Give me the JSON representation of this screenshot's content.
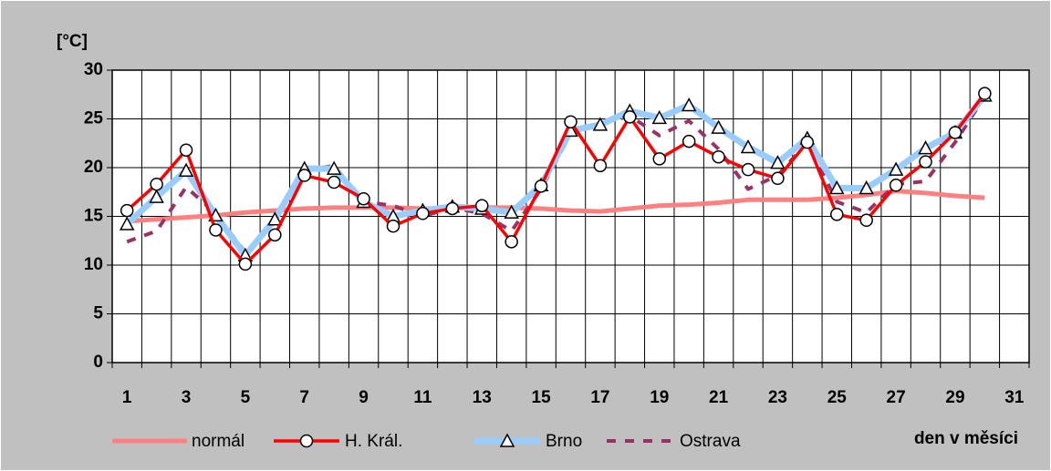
{
  "chart_data": {
    "type": "line",
    "ylabel": "[°C]",
    "xlabel": "den v měsíci",
    "categories": [
      1,
      null,
      3,
      null,
      5,
      null,
      7,
      null,
      9,
      null,
      11,
      null,
      13,
      null,
      15,
      null,
      17,
      null,
      19,
      null,
      21,
      null,
      23,
      null,
      25,
      null,
      27,
      null,
      29,
      null,
      31
    ],
    "ylim": [
      0,
      30
    ],
    "yticks": [
      0,
      5,
      10,
      15,
      20,
      25,
      30
    ],
    "grid": true,
    "legend": "bottom",
    "series": [
      {
        "name": "normál",
        "color": "#ff8080",
        "marker": "none",
        "dash": false,
        "values": [
          14.5,
          14.7,
          14.9,
          15.1,
          15.4,
          15.6,
          15.8,
          15.9,
          15.9,
          15.9,
          15.8,
          15.8,
          15.9,
          15.9,
          15.8,
          15.6,
          15.5,
          15.8,
          16.1,
          16.2,
          16.4,
          16.7,
          16.7,
          16.7,
          16.9,
          17.2,
          17.6,
          17.4,
          17.1,
          16.9,
          null
        ]
      },
      {
        "name": "H. Král.",
        "color": "#ff0000",
        "marker": "circle",
        "dash": false,
        "values": [
          15.6,
          18.3,
          21.8,
          13.6,
          10.1,
          13.1,
          19.2,
          18.5,
          16.8,
          14.0,
          15.3,
          15.8,
          16.1,
          12.4,
          18.1,
          24.7,
          20.2,
          25.2,
          20.9,
          22.7,
          21.1,
          19.8,
          18.9,
          22.6,
          15.2,
          14.6,
          18.2,
          20.6,
          23.6,
          27.6,
          null
        ]
      },
      {
        "name": "Brno",
        "color": "#99ccff",
        "marker": "triangle",
        "dash": false,
        "values": [
          14.2,
          17.0,
          19.7,
          15.1,
          11.0,
          14.7,
          19.9,
          19.9,
          16.5,
          15.0,
          15.6,
          16.0,
          15.8,
          15.4,
          18.2,
          23.8,
          24.4,
          25.8,
          25.1,
          26.4,
          24.1,
          22.1,
          20.5,
          23.0,
          17.9,
          17.9,
          19.8,
          22.0,
          23.6,
          27.4,
          null
        ]
      },
      {
        "name": "Ostrava",
        "color": "#993366",
        "marker": "none",
        "dash": true,
        "values": [
          12.4,
          13.5,
          18.0,
          15.3,
          11.3,
          14.5,
          19.7,
          20.2,
          16.5,
          16.1,
          15.0,
          15.9,
          15.3,
          13.5,
          17.8,
          23.5,
          24.5,
          25.3,
          23.3,
          24.8,
          21.9,
          17.8,
          19.2,
          22.6,
          16.5,
          15.4,
          18.3,
          18.6,
          22.6,
          27.3,
          null
        ]
      }
    ]
  }
}
